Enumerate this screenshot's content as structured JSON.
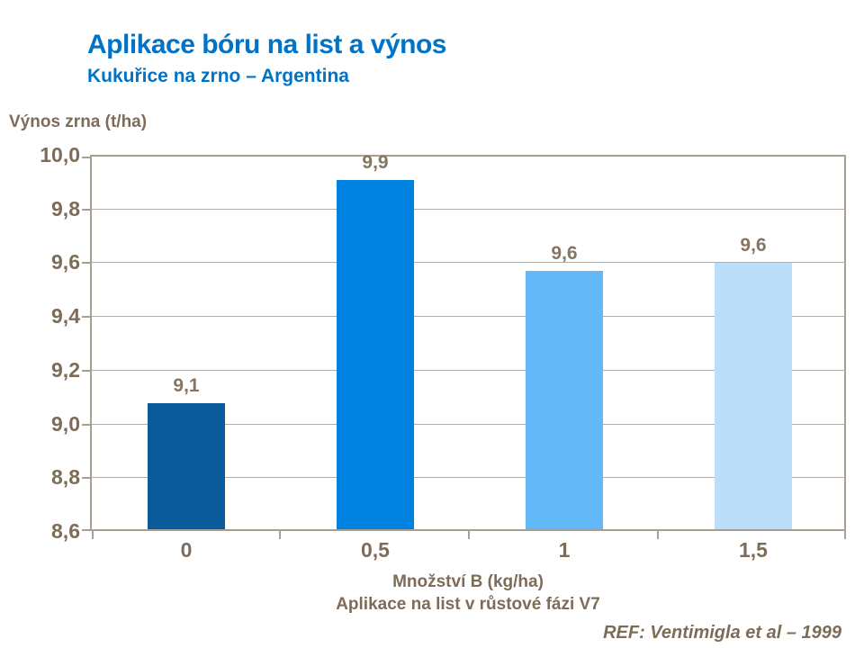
{
  "header": {
    "title": "Aplikace bóru na list a výnos",
    "subtitle": "Kukuřice na zrno – Argentina"
  },
  "footer": {
    "ref": "REF: Ventimigla et al – 1999"
  },
  "colors": {
    "title_blue": "#0073c7",
    "text_brown": "#7d6d58",
    "axis_line": "#a89e91",
    "gridline": "#b5aca2",
    "bar_colors": [
      "#0a5a9c",
      "#0082e1",
      "#63b9f7",
      "#bcdef9"
    ]
  },
  "chart_data": {
    "type": "bar",
    "title": "Aplikace bóru na list a výnos",
    "subtitle": "Kukuřice na zrno – Argentina",
    "ylabel": "Výnos zrna (t/ha)",
    "xlabel_line1": "Množství B (kg/ha)",
    "xlabel_line2": "Aplikace na list v růstové fázi V7",
    "categories": [
      "0",
      "0,5",
      "1",
      "1,5"
    ],
    "values": [
      9.07,
      9.9,
      9.56,
      9.59
    ],
    "value_labels": [
      "9,1",
      "9,9",
      "9,6",
      "9,6"
    ],
    "ylim": [
      8.6,
      10.0
    ],
    "ytick_step": 0.2,
    "ytick_labels": [
      "10,0",
      "9,8",
      "9,6",
      "9,4",
      "9,2",
      "9,0",
      "8,8",
      "8,6"
    ],
    "grid": true,
    "legend": false,
    "annotation": "REF: Ventimigla et al – 1999"
  }
}
